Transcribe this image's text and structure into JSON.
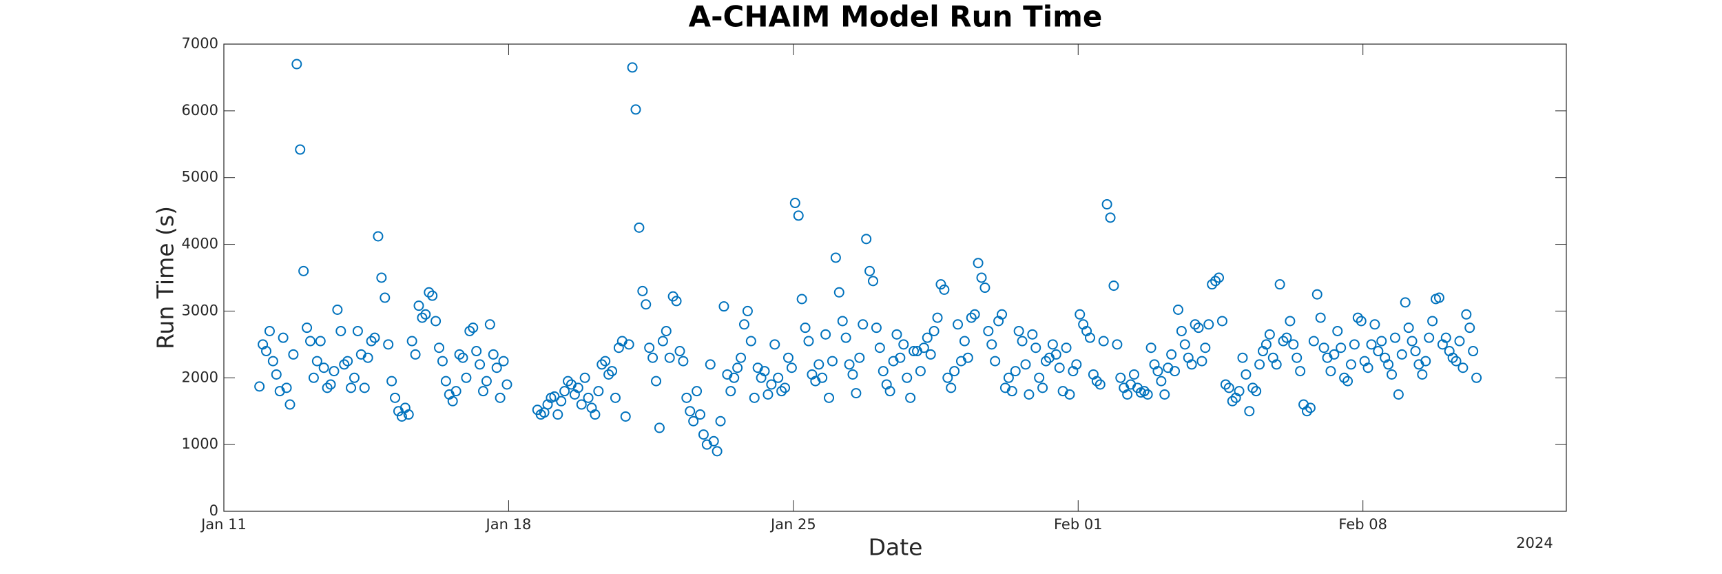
{
  "chart_data": {
    "type": "scatter",
    "title": "A-CHAIM Model Run Time",
    "xlabel": "Date",
    "ylabel": "Run Time (s)",
    "x_secondary_label": "2024",
    "marker": "open-circle",
    "color": "#0072BD",
    "xlim": [
      "2024-01-11T00",
      "2024-02-13T00"
    ],
    "xticks": [
      {
        "value": "2024-01-11T00",
        "label": "Jan 11"
      },
      {
        "value": "2024-01-18T00",
        "label": "Jan 18"
      },
      {
        "value": "2024-01-25T00",
        "label": "Jan 25"
      },
      {
        "value": "2024-02-01T00",
        "label": "Feb 01"
      },
      {
        "value": "2024-02-08T00",
        "label": "Feb 08"
      }
    ],
    "ylim": [
      0,
      7000
    ],
    "yticks": [
      0,
      1000,
      2000,
      3000,
      4000,
      5000,
      6000,
      7000
    ],
    "x": [
      "2024-01-11T21",
      "2024-01-11T23",
      "2024-01-12T01",
      "2024-01-12T03",
      "2024-01-12T05",
      "2024-01-12T07",
      "2024-01-12T09",
      "2024-01-12T11",
      "2024-01-12T13",
      "2024-01-12T15",
      "2024-01-12T17",
      "2024-01-12T19",
      "2024-01-12T21",
      "2024-01-12T23",
      "2024-01-13T01",
      "2024-01-13T03",
      "2024-01-13T05",
      "2024-01-13T07",
      "2024-01-13T09",
      "2024-01-13T11",
      "2024-01-13T13",
      "2024-01-13T15",
      "2024-01-13T17",
      "2024-01-13T19",
      "2024-01-13T21",
      "2024-01-13T23",
      "2024-01-14T01",
      "2024-01-14T03",
      "2024-01-14T05",
      "2024-01-14T07",
      "2024-01-14T09",
      "2024-01-14T11",
      "2024-01-14T13",
      "2024-01-14T15",
      "2024-01-14T17",
      "2024-01-14T19",
      "2024-01-14T21",
      "2024-01-14T23",
      "2024-01-15T01",
      "2024-01-15T03",
      "2024-01-15T05",
      "2024-01-15T07",
      "2024-01-15T09",
      "2024-01-15T11",
      "2024-01-15T13",
      "2024-01-15T15",
      "2024-01-15T17",
      "2024-01-15T19",
      "2024-01-15T21",
      "2024-01-15T23",
      "2024-01-16T01",
      "2024-01-16T03",
      "2024-01-16T05",
      "2024-01-16T07",
      "2024-01-16T09",
      "2024-01-16T11",
      "2024-01-16T13",
      "2024-01-16T15",
      "2024-01-16T17",
      "2024-01-16T19",
      "2024-01-16T21",
      "2024-01-16T23",
      "2024-01-17T01",
      "2024-01-17T03",
      "2024-01-17T05",
      "2024-01-17T07",
      "2024-01-17T09",
      "2024-01-17T11",
      "2024-01-17T13",
      "2024-01-17T15",
      "2024-01-17T17",
      "2024-01-17T19",
      "2024-01-17T21",
      "2024-01-17T23",
      "2024-01-18T17",
      "2024-01-18T19",
      "2024-01-18T21",
      "2024-01-18T23",
      "2024-01-19T01",
      "2024-01-19T03",
      "2024-01-19T05",
      "2024-01-19T07",
      "2024-01-19T09",
      "2024-01-19T11",
      "2024-01-19T13",
      "2024-01-19T15",
      "2024-01-19T17",
      "2024-01-19T19",
      "2024-01-19T21",
      "2024-01-19T23",
      "2024-01-20T01",
      "2024-01-20T03",
      "2024-01-20T05",
      "2024-01-20T07",
      "2024-01-20T09",
      "2024-01-20T11",
      "2024-01-20T13",
      "2024-01-20T15",
      "2024-01-20T17",
      "2024-01-20T19",
      "2024-01-20T21",
      "2024-01-20T23",
      "2024-01-21T01",
      "2024-01-21T03",
      "2024-01-21T05",
      "2024-01-21T07",
      "2024-01-21T09",
      "2024-01-21T11",
      "2024-01-21T13",
      "2024-01-21T15",
      "2024-01-21T17",
      "2024-01-21T19",
      "2024-01-21T21",
      "2024-01-21T23",
      "2024-01-22T01",
      "2024-01-22T03",
      "2024-01-22T05",
      "2024-01-22T07",
      "2024-01-22T09",
      "2024-01-22T11",
      "2024-01-22T13",
      "2024-01-22T15",
      "2024-01-22T17",
      "2024-01-22T19",
      "2024-01-22T21",
      "2024-01-22T23",
      "2024-01-23T01",
      "2024-01-23T03",
      "2024-01-23T05",
      "2024-01-23T07",
      "2024-01-23T09",
      "2024-01-23T11",
      "2024-01-23T13",
      "2024-01-23T15",
      "2024-01-23T17",
      "2024-01-23T19",
      "2024-01-23T21",
      "2024-01-23T23",
      "2024-01-24T01",
      "2024-01-24T03",
      "2024-01-24T05",
      "2024-01-24T07",
      "2024-01-24T09",
      "2024-01-24T11",
      "2024-01-24T13",
      "2024-01-24T15",
      "2024-01-24T17",
      "2024-01-24T19",
      "2024-01-24T21",
      "2024-01-24T23",
      "2024-01-25T01",
      "2024-01-25T03",
      "2024-01-25T05",
      "2024-01-25T07",
      "2024-01-25T09",
      "2024-01-25T11",
      "2024-01-25T13",
      "2024-01-25T15",
      "2024-01-25T17",
      "2024-01-25T19",
      "2024-01-25T21",
      "2024-01-25T23",
      "2024-01-26T01",
      "2024-01-26T03",
      "2024-01-26T05",
      "2024-01-26T07",
      "2024-01-26T09",
      "2024-01-26T11",
      "2024-01-26T13",
      "2024-01-26T15",
      "2024-01-26T17",
      "2024-01-26T19",
      "2024-01-26T21",
      "2024-01-26T23",
      "2024-01-27T01",
      "2024-01-27T03",
      "2024-01-27T05",
      "2024-01-27T07",
      "2024-01-27T09",
      "2024-01-27T11",
      "2024-01-27T13",
      "2024-01-27T15",
      "2024-01-27T17",
      "2024-01-27T19",
      "2024-01-27T21",
      "2024-01-27T23",
      "2024-01-28T01",
      "2024-01-28T03",
      "2024-01-28T05",
      "2024-01-28T07",
      "2024-01-28T09",
      "2024-01-28T11",
      "2024-01-28T13",
      "2024-01-28T15",
      "2024-01-28T17",
      "2024-01-28T19",
      "2024-01-28T21",
      "2024-01-28T23",
      "2024-01-29T01",
      "2024-01-29T03",
      "2024-01-29T05",
      "2024-01-29T07",
      "2024-01-29T09",
      "2024-01-29T11",
      "2024-01-29T13",
      "2024-01-29T15",
      "2024-01-29T17",
      "2024-01-29T19",
      "2024-01-29T21",
      "2024-01-29T23",
      "2024-01-30T01",
      "2024-01-30T03",
      "2024-01-30T05",
      "2024-01-30T07",
      "2024-01-30T09",
      "2024-01-30T11",
      "2024-01-30T13",
      "2024-01-30T15",
      "2024-01-30T17",
      "2024-01-30T19",
      "2024-01-30T21",
      "2024-01-30T23",
      "2024-01-31T01",
      "2024-01-31T03",
      "2024-01-31T05",
      "2024-01-31T07",
      "2024-01-31T09",
      "2024-01-31T11",
      "2024-01-31T13",
      "2024-01-31T15",
      "2024-01-31T17",
      "2024-01-31T19",
      "2024-01-31T21",
      "2024-01-31T23",
      "2024-02-01T01",
      "2024-02-01T03",
      "2024-02-01T05",
      "2024-02-01T07",
      "2024-02-01T09",
      "2024-02-01T11",
      "2024-02-01T13",
      "2024-02-01T15",
      "2024-02-01T17",
      "2024-02-01T19",
      "2024-02-01T21",
      "2024-02-01T23",
      "2024-02-02T01",
      "2024-02-02T03",
      "2024-02-02T05",
      "2024-02-02T07",
      "2024-02-02T09",
      "2024-02-02T11",
      "2024-02-02T13",
      "2024-02-02T15",
      "2024-02-02T17",
      "2024-02-02T19",
      "2024-02-02T21",
      "2024-02-02T23",
      "2024-02-03T01",
      "2024-02-03T03",
      "2024-02-03T05",
      "2024-02-03T07",
      "2024-02-03T09",
      "2024-02-03T11",
      "2024-02-03T13",
      "2024-02-03T15",
      "2024-02-03T17",
      "2024-02-03T19",
      "2024-02-03T21",
      "2024-02-03T23",
      "2024-02-04T01",
      "2024-02-04T03",
      "2024-02-04T05",
      "2024-02-04T07",
      "2024-02-04T09",
      "2024-02-04T11",
      "2024-02-04T13",
      "2024-02-04T15",
      "2024-02-04T17",
      "2024-02-04T19",
      "2024-02-04T21",
      "2024-02-04T23",
      "2024-02-05T01",
      "2024-02-05T03",
      "2024-02-05T05",
      "2024-02-05T07",
      "2024-02-05T09",
      "2024-02-05T11",
      "2024-02-05T13",
      "2024-02-05T15",
      "2024-02-05T17",
      "2024-02-05T19",
      "2024-02-05T21",
      "2024-02-05T23",
      "2024-02-06T01",
      "2024-02-06T03",
      "2024-02-06T05",
      "2024-02-06T07",
      "2024-02-06T09",
      "2024-02-06T11",
      "2024-02-06T13",
      "2024-02-06T15",
      "2024-02-06T17",
      "2024-02-06T19",
      "2024-02-06T21",
      "2024-02-06T23",
      "2024-02-07T01",
      "2024-02-07T03",
      "2024-02-07T05",
      "2024-02-07T07",
      "2024-02-07T09",
      "2024-02-07T11",
      "2024-02-07T13",
      "2024-02-07T15",
      "2024-02-07T17",
      "2024-02-07T19",
      "2024-02-07T21",
      "2024-02-07T23",
      "2024-02-08T01",
      "2024-02-08T03",
      "2024-02-08T05",
      "2024-02-08T07",
      "2024-02-08T09",
      "2024-02-08T11",
      "2024-02-08T13",
      "2024-02-08T15",
      "2024-02-08T17",
      "2024-02-08T19",
      "2024-02-08T21",
      "2024-02-08T23",
      "2024-02-09T01",
      "2024-02-09T03",
      "2024-02-09T05",
      "2024-02-09T07",
      "2024-02-09T09",
      "2024-02-09T11",
      "2024-02-09T13",
      "2024-02-09T15",
      "2024-02-09T17",
      "2024-02-09T19",
      "2024-02-09T21",
      "2024-02-09T23",
      "2024-02-10T01",
      "2024-02-10T03",
      "2024-02-10T05",
      "2024-02-10T07",
      "2024-02-10T09",
      "2024-02-10T11",
      "2024-02-10T13",
      "2024-02-10T15",
      "2024-02-10T17",
      "2024-02-10T19"
    ],
    "values": [
      1870,
      2500,
      2400,
      2700,
      2250,
      2050,
      1800,
      2600,
      1850,
      1600,
      2350,
      6700,
      5420,
      3600,
      2750,
      2550,
      2000,
      2250,
      2550,
      2150,
      1850,
      1900,
      2100,
      3020,
      2700,
      2200,
      2250,
      1850,
      2000,
      2700,
      2350,
      1850,
      2300,
      2550,
      2600,
      4120,
      3500,
      3200,
      2500,
      1950,
      1700,
      1500,
      1420,
      1550,
      1450,
      2550,
      2350,
      3080,
      2900,
      2950,
      3280,
      3230,
      2850,
      2450,
      2250,
      1950,
      1750,
      1650,
      1800,
      2350,
      2300,
      2000,
      2700,
      2750,
      2400,
      2200,
      1800,
      1950,
      2800,
      2350,
      2150,
      1700,
      2250,
      1900,
      1520,
      1450,
      1480,
      1600,
      1700,
      1720,
      1450,
      1650,
      1800,
      1950,
      1900,
      1750,
      1850,
      1600,
      2000,
      1700,
      1550,
      1450,
      1800,
      2200,
      2250,
      2050,
      2100,
      1700,
      2450,
      2550,
      1420,
      2500,
      6650,
      6020,
      4250,
      3300,
      3100,
      2450,
      2300,
      1950,
      1250,
      2550,
      2700,
      2300,
      3220,
      3150,
      2400,
      2250,
      1700,
      1500,
      1350,
      1800,
      1450,
      1150,
      1000,
      2200,
      1050,
      900,
      1350,
      3070,
      2050,
      1800,
      2000,
      2150,
      2300,
      2800,
      3000,
      2550,
      1700,
      2150,
      2000,
      2100,
      1750,
      1900,
      2500,
      2000,
      1800,
      1850,
      2300,
      2150,
      4620,
      4430,
      3180,
      2750,
      2550,
      2050,
      1950,
      2200,
      2000,
      2650,
      1700,
      2250,
      3800,
      3280,
      2850,
      2600,
      2200,
      2050,
      1770,
      2300,
      2800,
      4080,
      3600,
      3450,
      2750,
      2450,
      2100,
      1900,
      1800,
      2250,
      2650,
      2300,
      2500,
      2000,
      1700,
      2400,
      2400,
      2100,
      2450,
      2600,
      2350,
      2700,
      2900,
      3400,
      3320,
      2000,
      1850,
      2100,
      2800,
      2250,
      2550,
      2300,
      2900,
      2950,
      3720,
      3500,
      3350,
      2700,
      2500,
      2250,
      2850,
      2950,
      1850,
      2000,
      1800,
      2100,
      2700,
      2550,
      2200,
      1750,
      2650,
      2450,
      2000,
      1850,
      2250,
      2300,
      2500,
      2350,
      2150,
      1800,
      2450,
      1750,
      2100,
      2200,
      2950,
      2800,
      2700,
      2600,
      2050,
      1950,
      1900,
      2550,
      4600,
      4400,
      3380,
      2500,
      2000,
      1850,
      1750,
      1900,
      2050,
      1850,
      1780,
      1800,
      1750,
      2450,
      2200,
      2100,
      1950,
      1750,
      2150,
      2350,
      2100,
      3020,
      2700,
      2500,
      2300,
      2200,
      2800,
      2750,
      2250,
      2450,
      2800,
      3400,
      3450,
      3500,
      2850,
      1900,
      1850,
      1650,
      1700,
      1800,
      2300,
      2050,
      1500,
      1850,
      1800,
      2200,
      2400,
      2500,
      2650,
      2300,
      2200,
      3400,
      2550,
      2600,
      2850,
      2500,
      2300,
      2100,
      1600,
      1500,
      1550,
      2550,
      3250,
      2900,
      2450,
      2300,
      2100,
      2350,
      2700,
      2450,
      2000,
      1950,
      2200,
      2500,
      2900,
      2850,
      2250,
      2150,
      2500,
      2800,
      2400,
      2550,
      2300,
      2200,
      2050,
      2600,
      1750,
      2350,
      3130,
      2750,
      2550,
      2400,
      2200,
      2050,
      2250,
      2600,
      2850,
      3180,
      3200,
      2500,
      2600,
      2400,
      2300,
      2250,
      2550,
      2150,
      2950,
      2750,
      2400,
      2000
    ]
  }
}
